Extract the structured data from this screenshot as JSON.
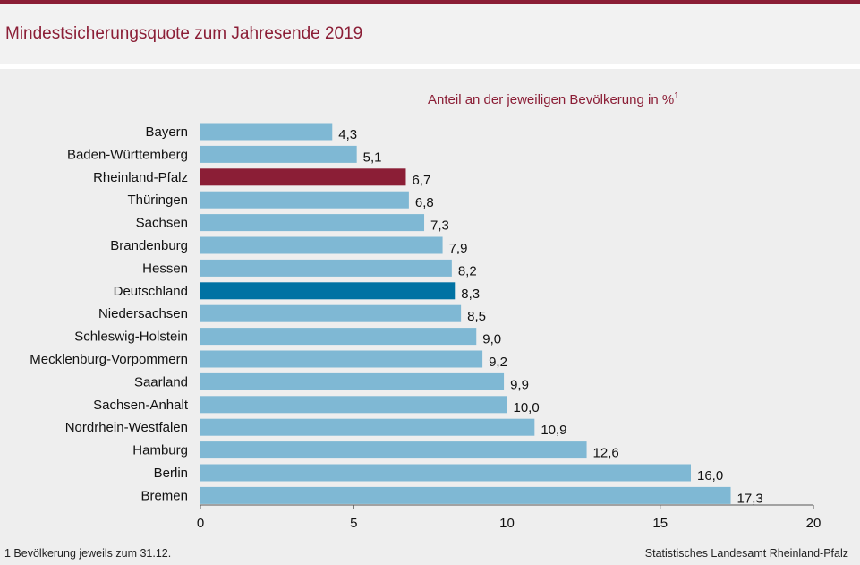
{
  "title": "Mindestsicherungsquote zum Jahresende 2019",
  "unit_label": "Anteil an der jeweiligen Bevölkerung  in %",
  "unit_sup": "1",
  "footnote": "1 Bevölkerung  jeweils  zum 31.12.",
  "source": "Statistisches Landesamt  Rheinland-Pfalz",
  "colors": {
    "bar": "#7fb8d4",
    "highlight_land": "#8b1e36",
    "highlight_national": "#0072a3",
    "title": "#8b1e36"
  },
  "chart_data": {
    "type": "bar",
    "orientation": "horizontal",
    "categories": [
      "Bayern",
      "Baden-Württemberg",
      "Rheinland-Pfalz",
      "Thüringen",
      "Sachsen",
      "Brandenburg",
      "Hessen",
      "Deutschland",
      "Niedersachsen",
      "Schleswig-Holstein",
      "Mecklenburg-Vorpommern",
      "Saarland",
      "Sachsen-Anhalt",
      "Nordrhein-Westfalen",
      "Hamburg",
      "Berlin",
      "Bremen"
    ],
    "values": [
      4.3,
      5.1,
      6.7,
      6.8,
      7.3,
      7.9,
      8.2,
      8.3,
      8.5,
      9.0,
      9.2,
      9.9,
      10.0,
      10.9,
      12.6,
      16.0,
      17.3
    ],
    "value_labels": [
      "4,3",
      "5,1",
      "6,7",
      "6,8",
      "7,3",
      "7,9",
      "8,2",
      "8,3",
      "8,5",
      "9,0",
      "9,2",
      "9,9",
      "10,0",
      "10,9",
      "12,6",
      "16,0",
      "17,3"
    ],
    "highlight": {
      "Rheinland-Pfalz": "#8b1e36",
      "Deutschland": "#0072a3"
    },
    "xlim": [
      0,
      20
    ],
    "xticks": [
      0,
      5,
      10,
      15,
      20
    ],
    "xtick_labels": [
      "0",
      "5",
      "10",
      "15",
      "20"
    ],
    "grid": false,
    "legend": "none"
  }
}
